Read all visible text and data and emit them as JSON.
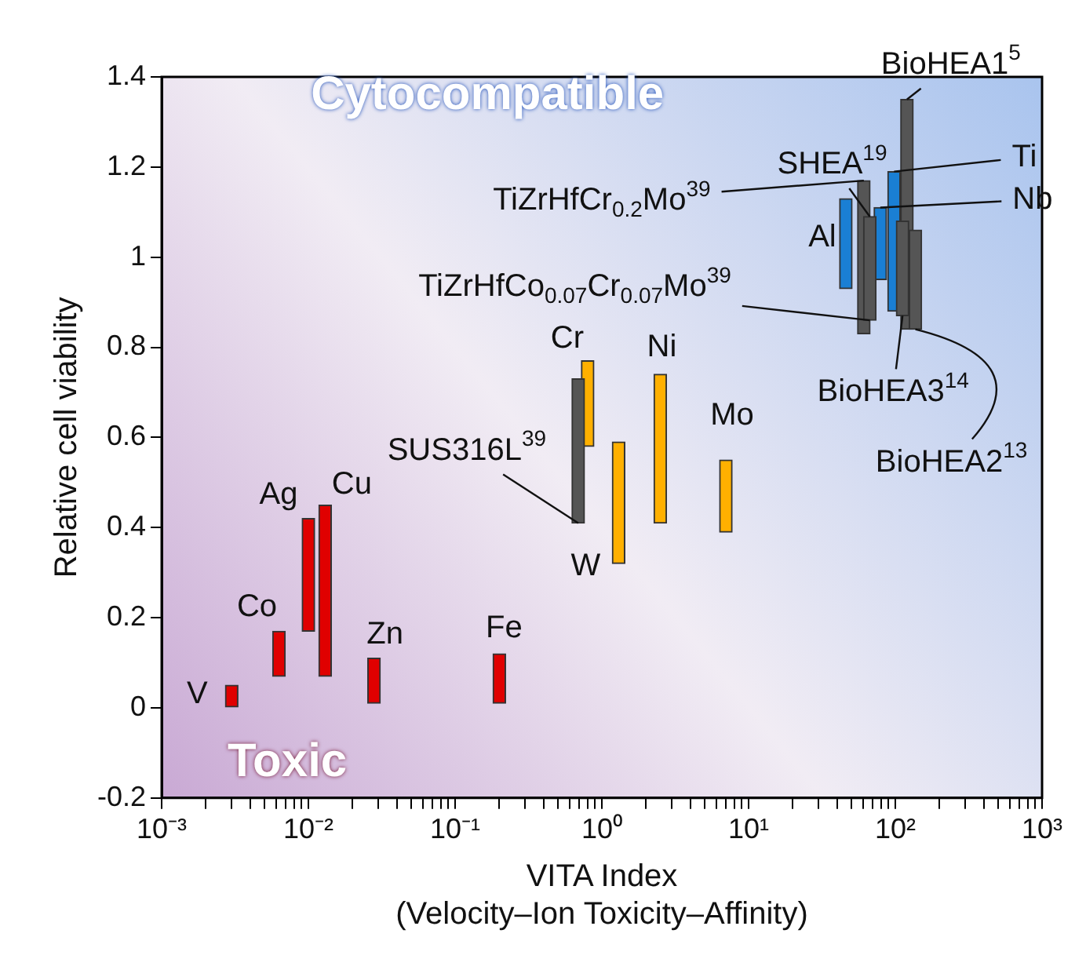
{
  "chart_data": {
    "type": "bar",
    "xlabel": "VITA Index\n(Velocity–Ion Toxicity–Affinity)",
    "ylabel": "Relative cell viability",
    "log": "x",
    "xlim": [
      0.001,
      1000
    ],
    "ylim": [
      -0.2,
      1.4
    ],
    "xticks": [
      {
        "value": 0.001,
        "label": "10⁻³"
      },
      {
        "value": 0.002,
        "label": null
      },
      {
        "value": 0.003,
        "label": null
      },
      {
        "value": 0.004,
        "label": null
      },
      {
        "value": 0.005,
        "label": null
      },
      {
        "value": 0.006,
        "label": null
      },
      {
        "value": 0.007,
        "label": null
      },
      {
        "value": 0.008,
        "label": null
      },
      {
        "value": 0.009,
        "label": null
      },
      {
        "value": 0.01,
        "label": "10⁻²"
      },
      {
        "value": 0.02,
        "label": null
      },
      {
        "value": 0.03,
        "label": null
      },
      {
        "value": 0.04,
        "label": null
      },
      {
        "value": 0.05,
        "label": null
      },
      {
        "value": 0.06,
        "label": null
      },
      {
        "value": 0.07,
        "label": null
      },
      {
        "value": 0.08,
        "label": null
      },
      {
        "value": 0.09,
        "label": null
      },
      {
        "value": 0.1,
        "label": "10⁻¹"
      },
      {
        "value": 0.2,
        "label": null
      },
      {
        "value": 0.3,
        "label": null
      },
      {
        "value": 0.4,
        "label": null
      },
      {
        "value": 0.5,
        "label": null
      },
      {
        "value": 0.6,
        "label": null
      },
      {
        "value": 0.7,
        "label": null
      },
      {
        "value": 0.8,
        "label": null
      },
      {
        "value": 0.9,
        "label": null
      },
      {
        "value": 1,
        "label": "10⁰"
      },
      {
        "value": 2,
        "label": null
      },
      {
        "value": 3,
        "label": null
      },
      {
        "value": 4,
        "label": null
      },
      {
        "value": 5,
        "label": null
      },
      {
        "value": 6,
        "label": null
      },
      {
        "value": 7,
        "label": null
      },
      {
        "value": 8,
        "label": null
      },
      {
        "value": 9,
        "label": null
      },
      {
        "value": 10,
        "label": "10¹"
      },
      {
        "value": 20,
        "label": null
      },
      {
        "value": 30,
        "label": null
      },
      {
        "value": 40,
        "label": null
      },
      {
        "value": 50,
        "label": null
      },
      {
        "value": 60,
        "label": null
      },
      {
        "value": 70,
        "label": null
      },
      {
        "value": 80,
        "label": null
      },
      {
        "value": 90,
        "label": null
      },
      {
        "value": 100,
        "label": "10²"
      },
      {
        "value": 200,
        "label": null
      },
      {
        "value": 300,
        "label": null
      },
      {
        "value": 400,
        "label": null
      },
      {
        "value": 500,
        "label": null
      },
      {
        "value": 600,
        "label": null
      },
      {
        "value": 700,
        "label": null
      },
      {
        "value": 800,
        "label": null
      },
      {
        "value": 900,
        "label": null
      },
      {
        "value": 1000,
        "label": "10³"
      }
    ],
    "yticks": [
      -0.2,
      0,
      0.2,
      0.4,
      0.6,
      0.8,
      1,
      1.2,
      1.4
    ],
    "grid": false,
    "legend": false,
    "series": [
      {
        "color": "#e00000",
        "x": [
          0.003,
          0.0063,
          0.01,
          0.013,
          0.028,
          0.2
        ],
        "base": [
          0,
          0.07,
          0.17,
          0.07,
          0.01,
          0.01
        ],
        "values": [
          0.05,
          0.1,
          0.25,
          0.38,
          0.1,
          0.11
        ]
      },
      {
        "color": "#ffb000",
        "x": [
          0.8,
          1.3,
          2.5,
          7
        ],
        "base": [
          0.58,
          0.32,
          0.41,
          0.39
        ],
        "values": [
          0.19,
          0.27,
          0.33,
          0.16
        ]
      },
      {
        "color": "#1a7fd4",
        "x": [
          46,
          79,
          98
        ],
        "base": [
          0.93,
          0.95,
          0.88
        ],
        "values": [
          0.2,
          0.16,
          0.31
        ]
      },
      {
        "color": "#555555",
        "x": [
          0.69,
          61,
          67,
          120,
          137
        ],
        "base": [
          0.41,
          0.83,
          0.86,
          0.84,
          0.84
        ],
        "values": [
          0.32,
          0.34,
          0.23,
          0.51,
          0.22
        ]
      },
      {
        "color": "#555555",
        "x": [
          112
        ],
        "base": [
          0.87
        ],
        "values": [
          0.21
        ]
      }
    ],
    "annotations": [
      "Cytocompatible",
      "Toxic",
      {
        "text": "V",
        "x": 0.003,
        "y": 0.05
      },
      {
        "text": "Co",
        "x": 0.0063,
        "y": 0.17
      },
      {
        "text": "Ag",
        "x": 0.01,
        "y": 0.42
      },
      {
        "text": "Cu",
        "x": 0.013,
        "y": 0.45
      },
      {
        "text": "Zn",
        "x": 0.028,
        "y": 0.11
      },
      {
        "text": "Fe",
        "x": 0.2,
        "y": 0.12
      },
      {
        "text": "SUS316L$^{39}$",
        "x": 0.69,
        "y": 0.41
      },
      {
        "text": "W",
        "x": 1.3,
        "y": 0.32
      },
      {
        "text": "Cr",
        "x": 0.8,
        "y": 0.77
      },
      {
        "text": "Ni",
        "x": 2.5,
        "y": 0.74
      },
      {
        "text": "Mo",
        "x": 7,
        "y": 0.55
      },
      {
        "text": "BioHEA1$^{5}$",
        "x": 120,
        "y": 1.35
      },
      {
        "text": "Ti",
        "x": 98,
        "y": 1.19
      },
      {
        "text": "SHEA$^{19}$",
        "x": 67,
        "y": 1.09
      },
      {
        "text": "TiZrHfCr$_{0.2}$Mo$^{39}$",
        "x": 61,
        "y": 1.17
      },
      {
        "text": "Nb",
        "x": 79,
        "y": 1.11
      },
      {
        "text": "Al",
        "x": 46,
        "y": 1.13
      },
      {
        "text": "TiZrHfCo$_{0.07}$Cr$_{0.07}$Mo$^{39}$",
        "x": 67,
        "y": 0.86
      },
      {
        "text": "BioHEA3$^{14}$",
        "x": 112,
        "y": 0.87
      },
      {
        "text": "BioHEA2$^{13}$",
        "x": 137,
        "y": 0.84
      }
    ]
  }
}
